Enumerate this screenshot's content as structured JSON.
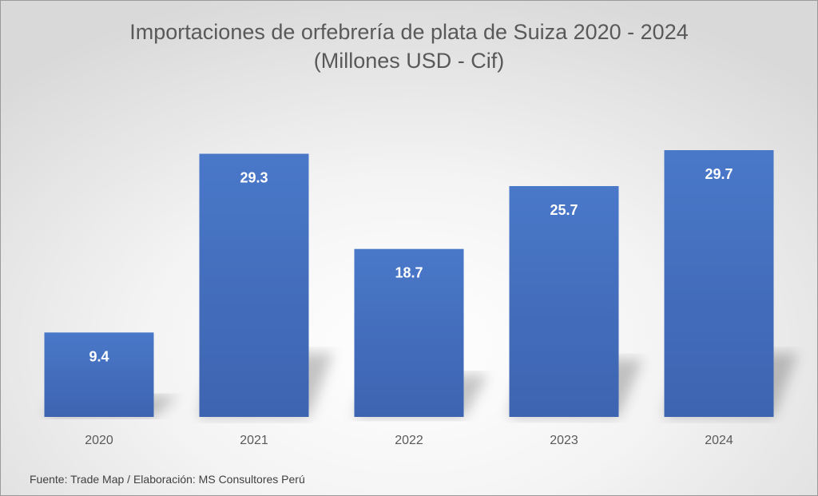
{
  "chart_data": {
    "type": "bar",
    "title": "Importaciones de orfebrería de plata de Suiza 2020 - 2024",
    "subtitle": "(Millones USD - Cif)",
    "categories": [
      "2020",
      "2021",
      "2022",
      "2023",
      "2024"
    ],
    "values": [
      9.4,
      29.3,
      18.7,
      25.7,
      29.7
    ],
    "data_labels": [
      "9.4",
      "29.3",
      "18.7",
      "25.7",
      "29.7"
    ],
    "bar_color": "#4472C4",
    "grid": false,
    "legend": "none"
  },
  "source_note": "Fuente: Trade Map / Elaboración: MS Consultores Perú"
}
